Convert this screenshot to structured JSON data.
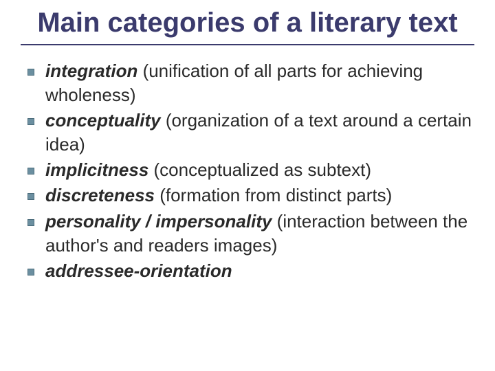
{
  "slide": {
    "title": "Main categories of a literary text",
    "title_color": "#3b3b6d",
    "title_fontsize": 40,
    "underline_color": "#3b3b6d",
    "background_color": "#ffffff",
    "body_color": "#2a2a2a",
    "body_fontsize": 26,
    "bullet_color": "#6b8fa0",
    "bullet_border": "#4a6b7a",
    "font_family": "Comic Sans MS",
    "items": [
      {
        "term": "integration",
        "rest": " (unification of all parts for achieving wholeness)"
      },
      {
        "term": "conceptuality",
        "rest": " (organization of a text around a certain idea)"
      },
      {
        "term": "implicitness",
        "rest": " (conceptualized as subtext)"
      },
      {
        "term": "discreteness",
        "rest": " (formation from distinct parts)"
      },
      {
        "term": "personality / impersonality",
        "rest": " (interaction between the author's and readers images)"
      },
      {
        "term": "addressee-orientation",
        "rest": ""
      }
    ]
  }
}
